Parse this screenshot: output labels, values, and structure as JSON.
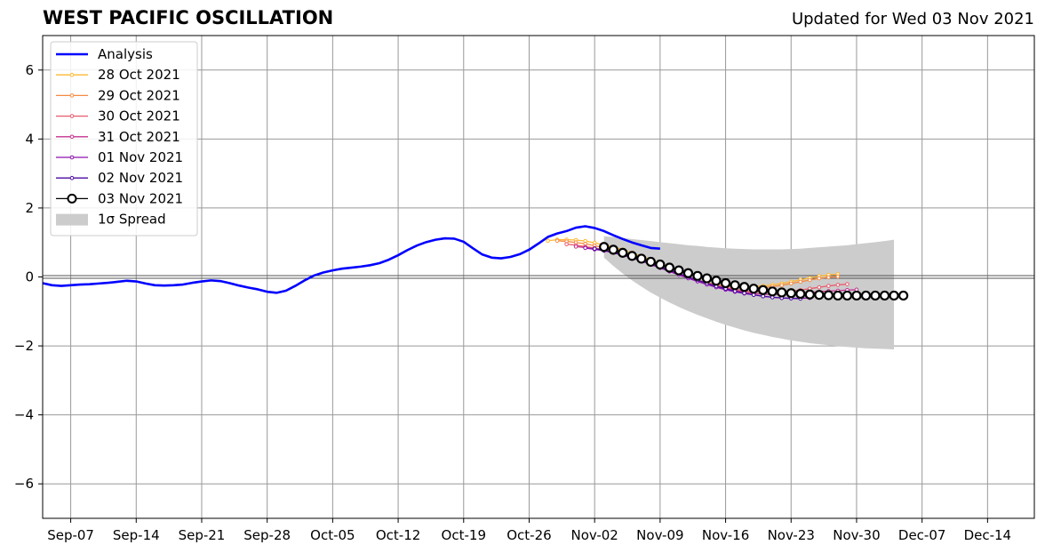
{
  "header": {
    "title": "WEST PACIFIC OSCILLATION",
    "updated": "Updated for Wed 03 Nov 2021"
  },
  "chart_data": {
    "type": "line",
    "title": "WEST PACIFIC OSCILLATION",
    "x_ticks": [
      "Sep-07",
      "Sep-14",
      "Sep-21",
      "Sep-28",
      "Oct-05",
      "Oct-12",
      "Oct-19",
      "Oct-26",
      "Nov-02",
      "Nov-09",
      "Nov-16",
      "Nov-23",
      "Nov-30",
      "Dec-07",
      "Dec-14"
    ],
    "xlim": [
      "2021-09-04",
      "2021-12-19"
    ],
    "ylim": [
      -7,
      7
    ],
    "y_ticks": [
      -6,
      -4,
      -2,
      0,
      2,
      4,
      6
    ],
    "grid": true,
    "legend_position": "top-left",
    "analysis": {
      "name": "Analysis",
      "color": "#0000ff",
      "start": "2021-09-04",
      "values": [
        -0.18,
        -0.24,
        -0.26,
        -0.24,
        -0.22,
        -0.21,
        -0.19,
        -0.17,
        -0.14,
        -0.11,
        -0.13,
        -0.19,
        -0.24,
        -0.25,
        -0.24,
        -0.22,
        -0.17,
        -0.13,
        -0.1,
        -0.12,
        -0.18,
        -0.25,
        -0.31,
        -0.36,
        -0.43,
        -0.46,
        -0.4,
        -0.26,
        -0.1,
        0.04,
        0.13,
        0.19,
        0.24,
        0.27,
        0.3,
        0.34,
        0.4,
        0.5,
        0.63,
        0.78,
        0.91,
        1.01,
        1.08,
        1.12,
        1.11,
        1.02,
        0.83,
        0.65,
        0.56,
        0.54,
        0.58,
        0.66,
        0.79,
        0.97,
        1.16,
        1.26,
        1.33,
        1.43,
        1.47,
        1.42,
        1.33,
        1.21,
        1.1,
        1.0,
        0.92,
        0.84,
        0.82
      ]
    },
    "forecasts": [
      {
        "name": "28 Oct 2021",
        "color": "#ffb833",
        "start": "2021-10-28",
        "values": [
          1.05,
          1.08,
          1.08,
          1.07,
          1.04,
          0.99,
          0.93,
          0.87,
          0.79,
          0.7,
          0.6,
          0.5,
          0.4,
          0.3,
          0.2,
          0.1,
          0.0,
          -0.08,
          -0.15,
          -0.2,
          -0.24,
          -0.26,
          -0.27,
          -0.26,
          -0.23,
          -0.19,
          -0.14,
          -0.08,
          -0.03,
          0.02,
          0.06,
          0.08
        ]
      },
      {
        "name": "29 Oct 2021",
        "color": "#f58a41",
        "start": "2021-10-29",
        "values": [
          1.05,
          1.03,
          1.0,
          0.96,
          0.91,
          0.84,
          0.76,
          0.67,
          0.57,
          0.47,
          0.37,
          0.27,
          0.17,
          0.08,
          -0.01,
          -0.09,
          -0.16,
          -0.22,
          -0.27,
          -0.3,
          -0.32,
          -0.32,
          -0.31,
          -0.28,
          -0.24,
          -0.19,
          -0.14,
          -0.09,
          -0.04,
          -0.01,
          0.01
        ]
      },
      {
        "name": "30 Oct 2021",
        "color": "#e85a6b",
        "start": "2021-10-30",
        "values": [
          0.95,
          0.92,
          0.88,
          0.84,
          0.79,
          0.73,
          0.65,
          0.56,
          0.47,
          0.37,
          0.27,
          0.17,
          0.08,
          -0.01,
          -0.1,
          -0.18,
          -0.25,
          -0.31,
          -0.36,
          -0.4,
          -0.43,
          -0.44,
          -0.44,
          -0.43,
          -0.41,
          -0.38,
          -0.34,
          -0.3,
          -0.26,
          -0.23,
          -0.21
        ]
      },
      {
        "name": "31 Oct 2021",
        "color": "#c4308f",
        "start": "2021-10-31",
        "values": [
          0.88,
          0.85,
          0.82,
          0.78,
          0.72,
          0.65,
          0.57,
          0.48,
          0.38,
          0.28,
          0.18,
          0.08,
          -0.01,
          -0.1,
          -0.18,
          -0.26,
          -0.33,
          -0.39,
          -0.44,
          -0.48,
          -0.5,
          -0.51,
          -0.51,
          -0.49,
          -0.47,
          -0.45,
          -0.43,
          -0.41,
          -0.4,
          -0.38,
          -0.37
        ]
      },
      {
        "name": "01 Nov 2021",
        "color": "#8c10ae",
        "start": "2021-11-01",
        "values": [
          0.84,
          0.8,
          0.76,
          0.7,
          0.63,
          0.55,
          0.46,
          0.36,
          0.26,
          0.16,
          0.06,
          -0.04,
          -0.13,
          -0.22,
          -0.3,
          -0.37,
          -0.43,
          -0.48,
          -0.52,
          -0.56,
          -0.59,
          -0.61,
          -0.62,
          -0.62,
          -0.61
        ]
      },
      {
        "name": "02 Nov 2021",
        "color": "#4b0aa0",
        "start": "2021-11-02",
        "values": [
          0.82,
          0.77,
          0.72,
          0.65,
          0.57,
          0.49,
          0.4,
          0.3,
          0.2,
          0.1,
          0.0,
          -0.09,
          -0.18,
          -0.27,
          -0.34,
          -0.41,
          -0.47,
          -0.52,
          -0.56,
          -0.59,
          -0.61,
          -0.62,
          -0.63
        ]
      },
      {
        "name": "03 Nov 2021",
        "color": "#000000",
        "start": "2021-11-03",
        "marker": "open-circle",
        "values": [
          0.87,
          0.79,
          0.7,
          0.61,
          0.53,
          0.44,
          0.36,
          0.27,
          0.19,
          0.11,
          0.03,
          -0.04,
          -0.11,
          -0.18,
          -0.24,
          -0.29,
          -0.34,
          -0.38,
          -0.42,
          -0.45,
          -0.47,
          -0.49,
          -0.51,
          -0.52,
          -0.53,
          -0.54,
          -0.54,
          -0.54,
          -0.54,
          -0.54,
          -0.54,
          -0.54,
          -0.54
        ]
      }
    ],
    "spread": {
      "name": "1σ Spread",
      "color": "#cccccc",
      "start": "2021-11-03",
      "end": "2021-12-04",
      "upper": [
        1.18,
        1.16,
        1.13,
        1.1,
        1.07,
        1.04,
        1.01,
        0.98,
        0.95,
        0.92,
        0.9,
        0.87,
        0.85,
        0.83,
        0.82,
        0.81,
        0.8,
        0.8,
        0.8,
        0.8,
        0.81,
        0.82,
        0.84,
        0.86,
        0.88,
        0.9,
        0.92,
        0.95,
        0.98,
        1.01,
        1.04,
        1.08
      ],
      "lower": [
        0.56,
        0.32,
        0.1,
        -0.1,
        -0.28,
        -0.45,
        -0.6,
        -0.74,
        -0.87,
        -0.99,
        -1.1,
        -1.2,
        -1.3,
        -1.39,
        -1.47,
        -1.55,
        -1.62,
        -1.68,
        -1.74,
        -1.79,
        -1.84,
        -1.88,
        -1.92,
        -1.95,
        -1.98,
        -2.01,
        -2.03,
        -2.05,
        -2.07,
        -2.08,
        -2.09,
        -2.1
      ]
    },
    "legend": [
      "Analysis",
      "28 Oct 2021",
      "29 Oct 2021",
      "30 Oct 2021",
      "31 Oct 2021",
      "01 Nov 2021",
      "02 Nov 2021",
      "03 Nov 2021",
      "1σ Spread"
    ]
  }
}
